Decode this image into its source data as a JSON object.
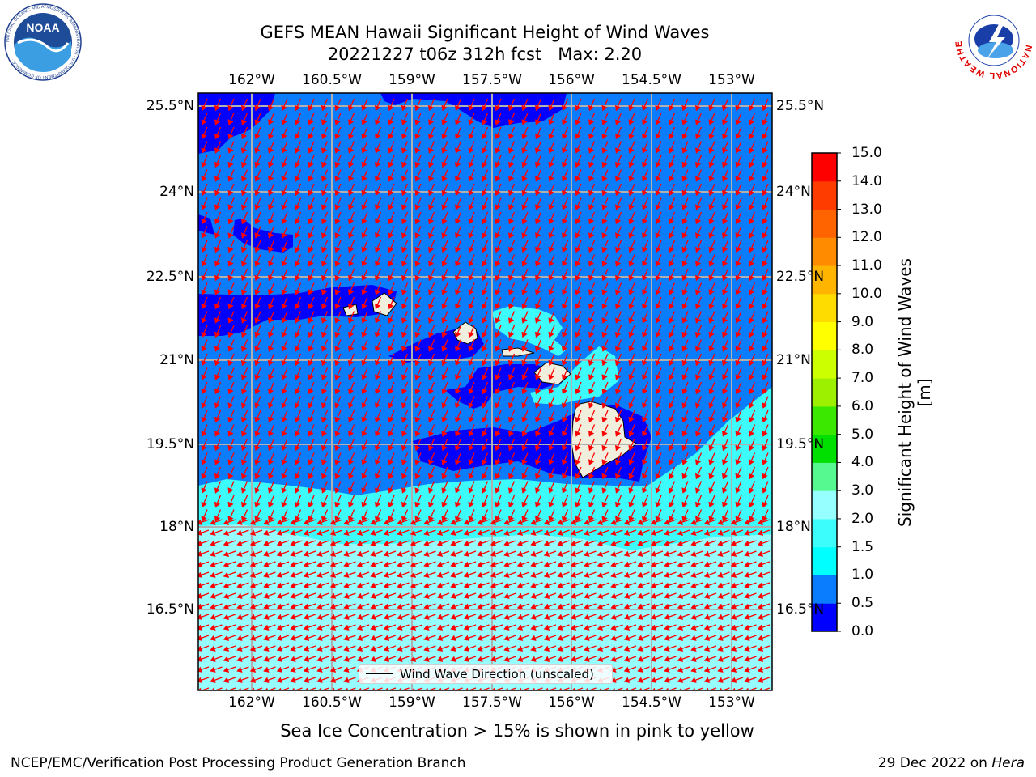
{
  "title": {
    "line1": "GEFS MEAN Hawaii Significant Height of Wind Waves",
    "line2": "20221227 t06z 312h fcst   Max: 2.20"
  },
  "axes": {
    "lon_labels": [
      "162°W",
      "160.5°W",
      "159°W",
      "157.5°W",
      "156°W",
      "154.5°W",
      "153°W"
    ],
    "lat_labels": [
      "25.5°N",
      "24°N",
      "22.5°N",
      "21°N",
      "19.5°N",
      "18°N",
      "16.5°N"
    ]
  },
  "legend": {
    "label": "Wind Wave Direction (unscaled)"
  },
  "colorbar": {
    "label": "Significant Height of Wind Waves [m]",
    "ticks": [
      "0.0",
      "0.5",
      "1.0",
      "1.5",
      "2.0",
      "3.0",
      "4.0",
      "5.0",
      "6.0",
      "7.0",
      "8.0",
      "9.0",
      "10.0",
      "11.0",
      "12.0",
      "13.0",
      "14.0",
      "15.0"
    ],
    "colors": [
      "#0000ff",
      "#0a7dff",
      "#00ffff",
      "#3cfcfc",
      "#96ffff",
      "#55f990",
      "#00e000",
      "#3ae800",
      "#9cf000",
      "#ccff00",
      "#ffff00",
      "#ffdc00",
      "#ffb400",
      "#ff8c00",
      "#ff6400",
      "#ff3c00",
      "#ff0000"
    ]
  },
  "note": "Sea Ice Concentration > 15% is shown in pink to yellow",
  "footer": {
    "left": "NCEP/EMC/Verification Post Processing Product Generation Branch",
    "right_date": "29 Dec 2022 on",
    "right_host": "Hera"
  },
  "logos": {
    "noaa_text": "NOAA",
    "noaa_ring": "NATIONAL OCEANIC AND ATMOSPHERIC ADMINISTRATION · U.S. DEPARTMENT OF COMMERCE ·",
    "nws_ring": "NATIONAL WEATHER SERVICE"
  },
  "map_colors": {
    "deep": "#0000ff",
    "mid": "#0a7dff",
    "light": "#3cfcfc",
    "lighter": "#96ffff",
    "land": "#f0eedc",
    "arrow": "#ff0000",
    "grid": "#b0b0b0"
  }
}
